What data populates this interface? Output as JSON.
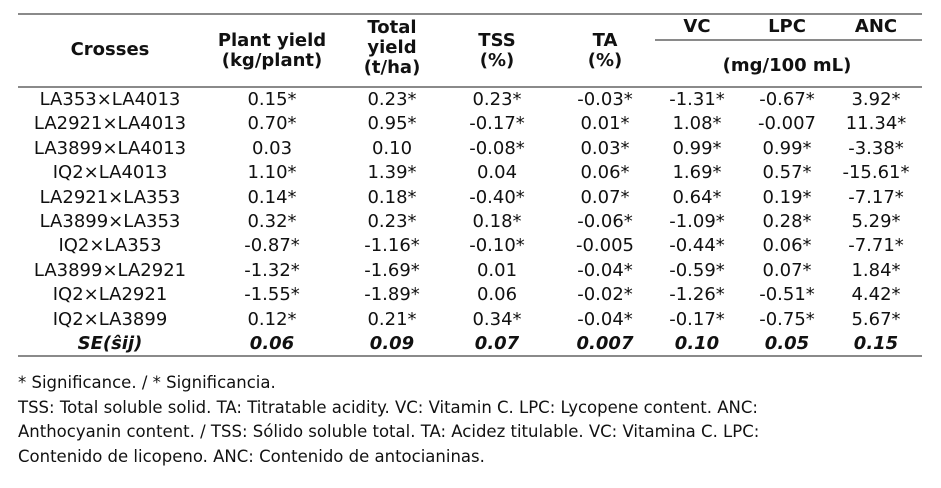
{
  "table": {
    "headers": {
      "crosses": "Crosses",
      "plant_yield": [
        "Plant yield",
        "(kg/plant)"
      ],
      "total_yield": [
        "Total",
        "yield",
        "(t/ha)"
      ],
      "tss": [
        "TSS",
        "(%)"
      ],
      "ta": [
        "TA",
        "(%)"
      ],
      "vc": "VC",
      "lpc": "LPC",
      "anc": "ANC",
      "unit_group": "(mg/100 mL)"
    },
    "rows": [
      [
        "LA353×LA4013",
        "0.15*",
        "0.23*",
        "0.23*",
        "-0.03*",
        "-1.31*",
        "-0.67*",
        "3.92*"
      ],
      [
        "LA2921×LA4013",
        "0.70*",
        "0.95*",
        "-0.17*",
        "0.01*",
        "1.08*",
        "-0.007",
        "11.34*"
      ],
      [
        "LA3899×LA4013",
        "0.03",
        "0.10",
        "-0.08*",
        "0.03*",
        "0.99*",
        "0.99*",
        "-3.38*"
      ],
      [
        "IQ2×LA4013",
        "1.10*",
        "1.39*",
        "0.04",
        "0.06*",
        "1.69*",
        "0.57*",
        "-15.61*"
      ],
      [
        "LA2921×LA353",
        "0.14*",
        "0.18*",
        "-0.40*",
        "0.07*",
        "0.64*",
        "0.19*",
        "-7.17*"
      ],
      [
        "LA3899×LA353",
        "0.32*",
        "0.23*",
        "0.18*",
        "-0.06*",
        "-1.09*",
        "0.28*",
        "5.29*"
      ],
      [
        "IQ2×LA353",
        "-0.87*",
        "-1.16*",
        "-0.10*",
        "-0.005",
        "-0.44*",
        "0.06*",
        "-7.71*"
      ],
      [
        "LA3899×LA2921",
        "-1.32*",
        "-1.69*",
        "0.01",
        "-0.04*",
        "-0.59*",
        "0.07*",
        "1.84*"
      ],
      [
        "IQ2×LA2921",
        "-1.55*",
        "-1.89*",
        "0.06",
        "-0.02*",
        "-1.26*",
        "-0.51*",
        "4.42*"
      ],
      [
        "IQ2×LA3899",
        "0.12*",
        "0.21*",
        "0.34*",
        "-0.04*",
        "-0.17*",
        "-0.75*",
        "5.67*"
      ]
    ],
    "se_row": [
      "SE(ŝij)",
      "0.06",
      "0.09",
      "0.07",
      "0.007",
      "0.10",
      "0.05",
      "0.15"
    ]
  },
  "footnotes": [
    "* Significance. / * Significancia.",
    "TSS: Total soluble solid. TA: Titratable acidity. VC: Vitamin C. LPC: Lycopene content. ANC:",
    "Anthocyanin content. / TSS: Sólido soluble total. TA: Acidez titulable. VC: Vitamina C. LPC:",
    "Contenido de licopeno. ANC: Contenido de antocianinas."
  ]
}
